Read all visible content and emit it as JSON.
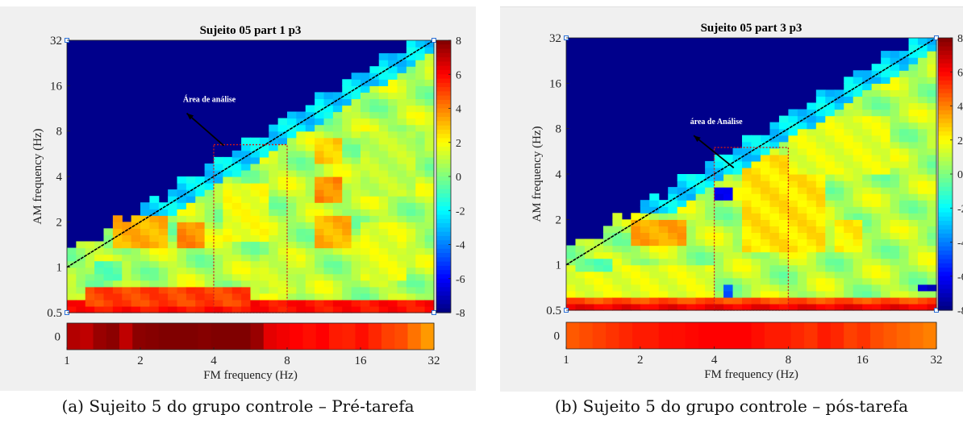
{
  "figures": [
    {
      "caption": "(a) Sujeito 5 do grupo controle – Pré-tarefa",
      "chart_data": {
        "type": "heatmap",
        "title": "Sujeito 05 part 1 p3",
        "xlabel": "FM frequency (Hz)",
        "ylabel": "AM frequency (Hz)",
        "x_scale": "log2",
        "y_scale": "log2",
        "xlim": [
          1,
          32
        ],
        "ylim": [
          0.5,
          32
        ],
        "x_ticks": [
          "1",
          "2",
          "4",
          "8",
          "16",
          "32"
        ],
        "y_ticks": [
          "0.5",
          "1",
          "2",
          "4",
          "8",
          "16",
          "32"
        ],
        "colorbar": {
          "range": [
            -8,
            8
          ],
          "ticks": [
            "8",
            "6",
            "4",
            "2",
            "0",
            "-2",
            "-4",
            "-6",
            "-8"
          ]
        },
        "annotation": {
          "text": "Área de análise",
          "arrow_from": [
            3.1,
            10.5
          ],
          "arrow_to": [
            4.4,
            6.4
          ]
        },
        "analysis_box": {
          "x_range": [
            4,
            8
          ],
          "y_range": [
            0.5,
            6.5
          ]
        },
        "diagonal": {
          "from": [
            1,
            1
          ],
          "to": [
            32,
            32
          ]
        },
        "bottom_strip": {
          "ylabel": "0",
          "values": [
            7.2,
            7.0,
            7.6,
            7.8,
            7.0,
            7.8,
            7.9,
            8.0,
            8.0,
            8.0,
            7.9,
            8.0,
            8.0,
            8.0,
            7.6,
            6.4,
            6.2,
            6.0,
            5.8,
            6.0,
            5.6,
            5.5,
            5.8,
            5.4,
            5.0,
            4.8,
            4.2,
            3.6
          ]
        },
        "regions": [
          {
            "x": [
              1.6,
              2.8
            ],
            "y": [
              0.5,
              0.58
            ],
            "value": 8.0
          },
          {
            "x": [
              1,
              32
            ],
            "y": [
              0.5,
              0.6
            ],
            "value": 5.8
          },
          {
            "x": [
              1.2,
              5.5
            ],
            "y": [
              0.55,
              0.75
            ],
            "value": 5.0
          },
          {
            "x": [
              1.6,
              2.6
            ],
            "y": [
              1.3,
              2.2
            ],
            "value": 3.2
          },
          {
            "x": [
              2.8,
              3.8
            ],
            "y": [
              1.4,
              2.0
            ],
            "value": 3.8
          },
          {
            "x": [
              10,
              15
            ],
            "y": [
              1.3,
              2.2
            ],
            "value": 3.2
          },
          {
            "x": [
              10,
              14
            ],
            "y": [
              2.6,
              4.0
            ],
            "value": 3.8
          },
          {
            "x": [
              10,
              14
            ],
            "y": [
              4.8,
              7.0
            ],
            "value": 2.8
          },
          {
            "x": [
              4.5,
              7
            ],
            "y": [
              1.5,
              3.5
            ],
            "value": 1.8
          },
          {
            "x": [
              16,
              24
            ],
            "y": [
              0.8,
              2.0
            ],
            "value": 1.6
          },
          {
            "x": [
              6,
              9
            ],
            "y": [
              0.7,
              1.2
            ],
            "value": 1.2
          },
          {
            "x": [
              16,
              26
            ],
            "y": [
              3,
              8
            ],
            "value": 1.0
          },
          {
            "x": [
              1.3,
              1.7
            ],
            "y": [
              0.85,
              1.1
            ],
            "value": -0.5
          }
        ],
        "cells": {
          "nx": 40,
          "ny": 42,
          "base_value": 0.8,
          "top_row_threshold_above_diagonal": 0.3
        }
      }
    },
    {
      "caption": "(b) Sujeito 5 do grupo controle – pós-tarefa",
      "chart_data": {
        "type": "heatmap",
        "title": "Sujeito 05 part 3 p3",
        "xlabel": "FM frequency (Hz)",
        "ylabel": "AM frequency (Hz)",
        "x_scale": "log2",
        "y_scale": "log2",
        "xlim": [
          1,
          32
        ],
        "ylim": [
          0.5,
          32
        ],
        "x_ticks": [
          "1",
          "2",
          "4",
          "8",
          "16",
          "32"
        ],
        "y_ticks": [
          "0.5",
          "1",
          "2",
          "4",
          "8",
          "16",
          "32"
        ],
        "colorbar": {
          "range": [
            -8,
            8
          ],
          "ticks": [
            "8",
            "6",
            "4",
            "2",
            "0",
            "-2",
            "-4",
            "-6",
            "-8"
          ]
        },
        "annotation": {
          "text": "área de Análise",
          "arrow_from": [
            3.3,
            7.2
          ],
          "arrow_to": [
            4.8,
            4.4
          ]
        },
        "analysis_box": {
          "x_range": [
            4,
            8
          ],
          "y_range": [
            0.5,
            6
          ]
        },
        "diagonal": {
          "from": [
            1,
            1
          ],
          "to": [
            32,
            32
          ]
        },
        "bottom_strip": {
          "ylabel": "0",
          "values": [
            4.6,
            4.8,
            5.0,
            5.2,
            5.4,
            5.6,
            5.6,
            5.8,
            5.8,
            5.9,
            6.0,
            6.0,
            6.0,
            6.0,
            5.8,
            5.6,
            5.6,
            5.4,
            5.2,
            5.6,
            5.4,
            5.0,
            5.2,
            4.8,
            4.6,
            4.4,
            4.2,
            4.0
          ]
        },
        "regions": [
          {
            "x": [
              1,
              32
            ],
            "y": [
              0.5,
              0.56
            ],
            "value": 6.2
          },
          {
            "x": [
              1,
              32
            ],
            "y": [
              0.56,
              0.62
            ],
            "value": 4.8
          },
          {
            "x": [
              1.8,
              3.0
            ],
            "y": [
              1.4,
              2.0
            ],
            "value": 3.4
          },
          {
            "x": [
              5,
              7
            ],
            "y": [
              2.0,
              3.5
            ],
            "value": 3.2
          },
          {
            "x": [
              8.5,
              10
            ],
            "y": [
              2.2,
              3.5
            ],
            "value": 3.8
          },
          {
            "x": [
              5,
              11
            ],
            "y": [
              1.2,
              5.5
            ],
            "value": 2.4
          },
          {
            "x": [
              12,
              16
            ],
            "y": [
              1.2,
              2.0
            ],
            "value": 2.2
          },
          {
            "x": [
              1,
              4
            ],
            "y": [
              0.62,
              1.0
            ],
            "value": 1.6
          },
          {
            "x": [
              8,
              20
            ],
            "y": [
              4,
              10
            ],
            "value": 1.6
          },
          {
            "x": [
              4.1,
              4.6
            ],
            "y": [
              2.7,
              3.3
            ],
            "value": -6.5
          },
          {
            "x": [
              4.2,
              4.6
            ],
            "y": [
              0.62,
              0.72
            ],
            "value": -4.5
          },
          {
            "x": [
              27,
              32
            ],
            "y": [
              0.66,
              0.74
            ],
            "value": -7.0
          },
          {
            "x": [
              1.1,
              1.5
            ],
            "y": [
              0.95,
              1.1
            ],
            "value": -0.5
          }
        ],
        "cells": {
          "nx": 40,
          "ny": 42,
          "base_value": 0.8,
          "top_row_threshold_above_diagonal": 0.3
        }
      }
    }
  ]
}
